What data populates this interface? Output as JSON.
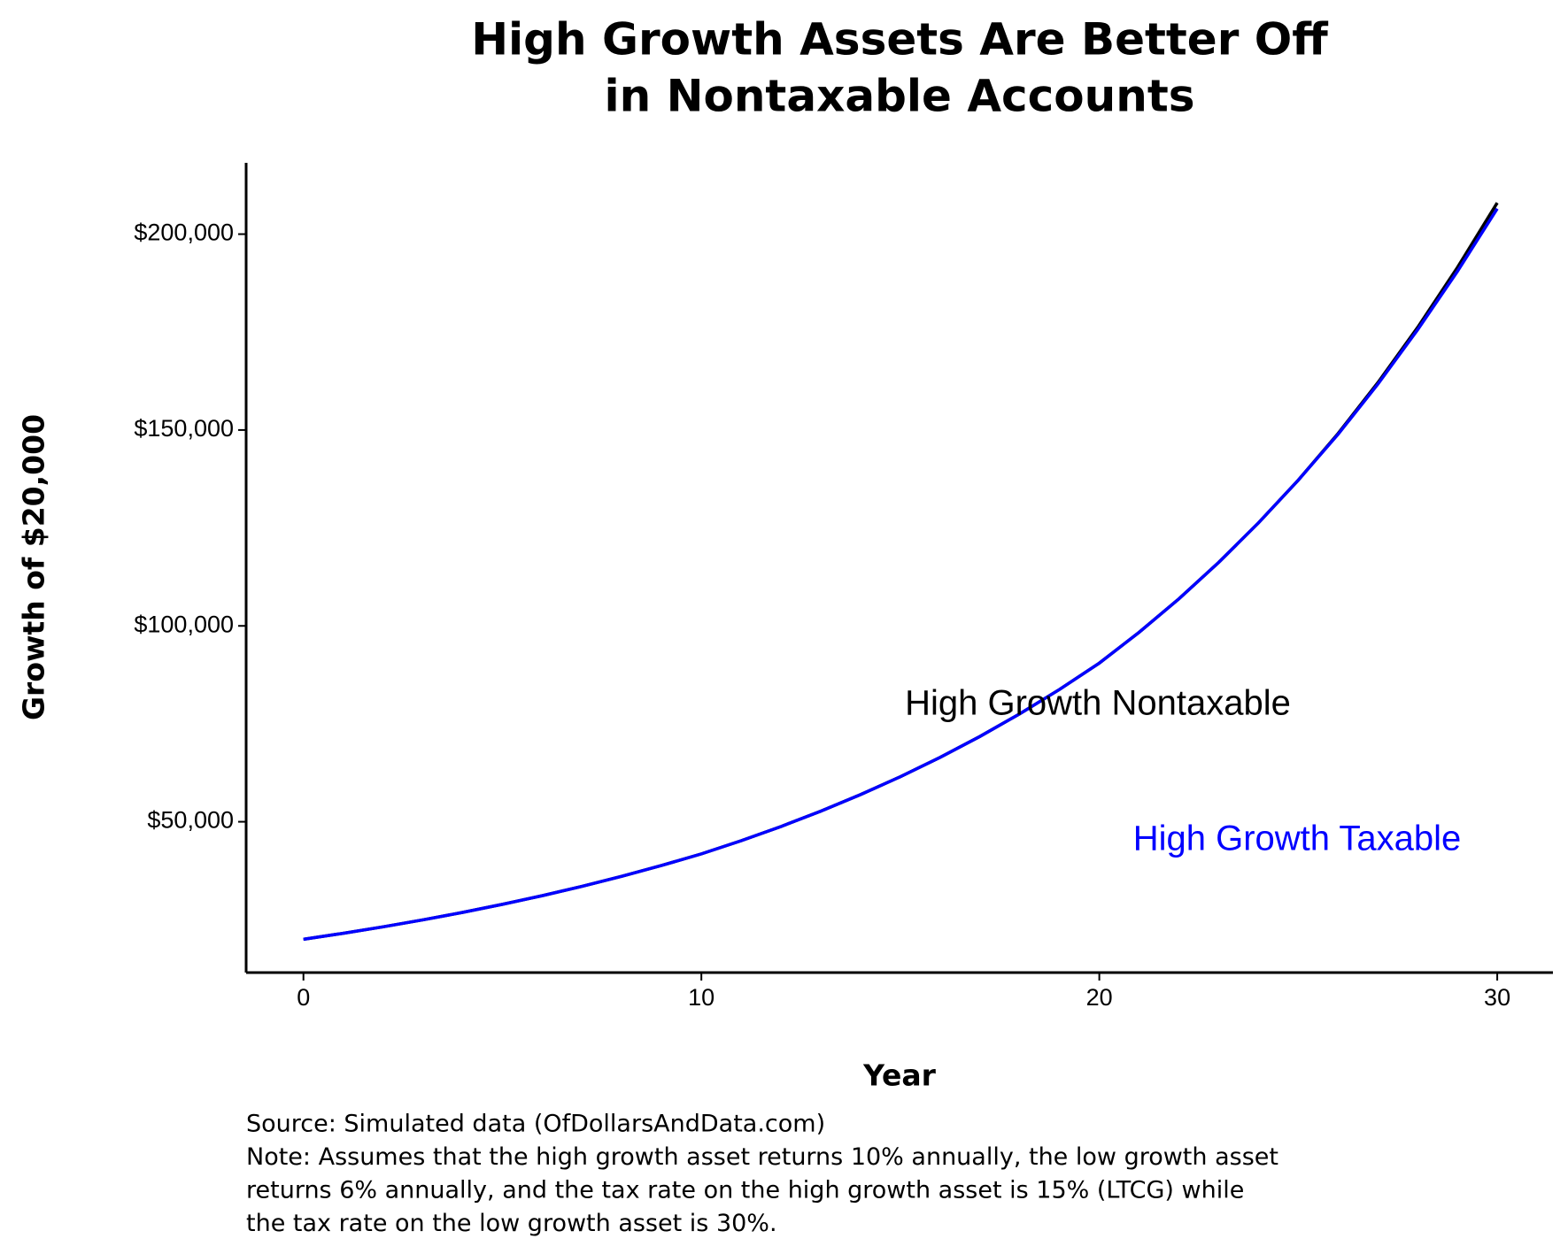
{
  "chart_data": {
    "type": "line",
    "title": [
      "High Growth Assets Are Better Off",
      "in Nontaxable Accounts"
    ],
    "xlabel": "Year",
    "ylabel": "Growth of $20,000",
    "caption": [
      "Source: Simulated data (OfDollarsAndData.com)",
      "Note: Assumes that the high growth asset returns 10% annually, the low growth asset",
      "returns 6% annually, and the tax rate on the high growth asset is 15% (LTCG) while",
      "the tax rate on the low growth asset is 30%."
    ],
    "x": [
      0,
      1,
      2,
      3,
      4,
      5,
      6,
      7,
      8,
      9,
      10,
      11,
      12,
      13,
      14,
      15,
      16,
      17,
      18,
      19,
      20,
      21,
      22,
      23,
      24,
      25,
      26,
      27,
      28,
      29,
      30
    ],
    "series": [
      {
        "name": "High Growth Nontaxable",
        "color": "#000000",
        "values": [
          20000,
          21530,
          23180,
          24950,
          26860,
          28920,
          31130,
          33510,
          36080,
          38840,
          41800,
          45160,
          48780,
          52700,
          56930,
          61500,
          66440,
          71780,
          77540,
          83770,
          90500,
          98360,
          106900,
          116200,
          126300,
          137200,
          149100,
          162100,
          176200,
          191500,
          208000
        ]
      },
      {
        "name": "High Growth Taxable",
        "color": "#0000ff",
        "values": [
          20000,
          21530,
          23180,
          24950,
          26860,
          28920,
          31130,
          33510,
          36080,
          38840,
          41800,
          45160,
          48780,
          52700,
          56930,
          61500,
          66440,
          71780,
          77540,
          83770,
          90500,
          98360,
          106900,
          116200,
          126300,
          137200,
          148900,
          161700,
          175600,
          190500,
          206500
        ]
      }
    ],
    "xlim": [
      -1.44,
      31.4
    ],
    "ylim": [
      11500,
      218200
    ],
    "xticks": [
      0,
      10,
      20,
      30
    ],
    "yticks": [
      {
        "value": 50000,
        "label": "$50,000"
      },
      {
        "value": 100000,
        "label": "$100,000"
      },
      {
        "value": 150000,
        "label": "$150,000"
      },
      {
        "value": 200000,
        "label": "$200,000"
      }
    ],
    "grid": false
  }
}
